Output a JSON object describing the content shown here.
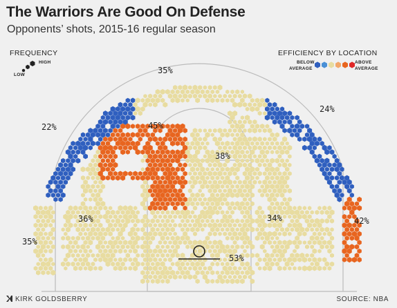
{
  "header": {
    "title": "The Warriors Are Good On Defense",
    "subtitle": "Opponents’ shots, 2015-16 regular season"
  },
  "legend": {
    "frequency_title": "FREQUENCY",
    "frequency_low": "LOW",
    "frequency_high": "HIGH",
    "efficiency_title": "EFFICIENCY BY LOCATION",
    "below_line1": "BELOW",
    "below_line2": "AVERAGE",
    "above_line1": "ABOVE",
    "above_line2": "AVERAGE",
    "colors": [
      "#2f5fbf",
      "#4a90d6",
      "#e8dca0",
      "#f2a86a",
      "#e8651f",
      "#e02828"
    ]
  },
  "footer": {
    "author": "KIRK GOLDSBERRY",
    "source": "SOURCE: NBA"
  },
  "chart_data": {
    "type": "heatmap",
    "title": "The Warriors Are Good On Defense",
    "subtitle": "Opponents’ shots, 2015-16 regular season",
    "zones": [
      {
        "zone": "left corner three",
        "pct": "35%",
        "efficiency": "average"
      },
      {
        "zone": "left wing three",
        "pct": "22%",
        "efficiency": "below average"
      },
      {
        "zone": "top of key three",
        "pct": "35%",
        "efficiency": "average"
      },
      {
        "zone": "right wing three",
        "pct": "24%",
        "efficiency": "below average"
      },
      {
        "zone": "right corner three",
        "pct": "42%",
        "efficiency": "above average"
      },
      {
        "zone": "left elbow midrange",
        "pct": "45%",
        "efficiency": "above average"
      },
      {
        "zone": "right elbow midrange",
        "pct": "38%",
        "efficiency": "average"
      },
      {
        "zone": "left baseline midrange",
        "pct": "36%",
        "efficiency": "average"
      },
      {
        "zone": "right baseline midrange",
        "pct": "34%",
        "efficiency": "average"
      },
      {
        "zone": "restricted area",
        "pct": "53%",
        "efficiency": "average"
      }
    ]
  }
}
